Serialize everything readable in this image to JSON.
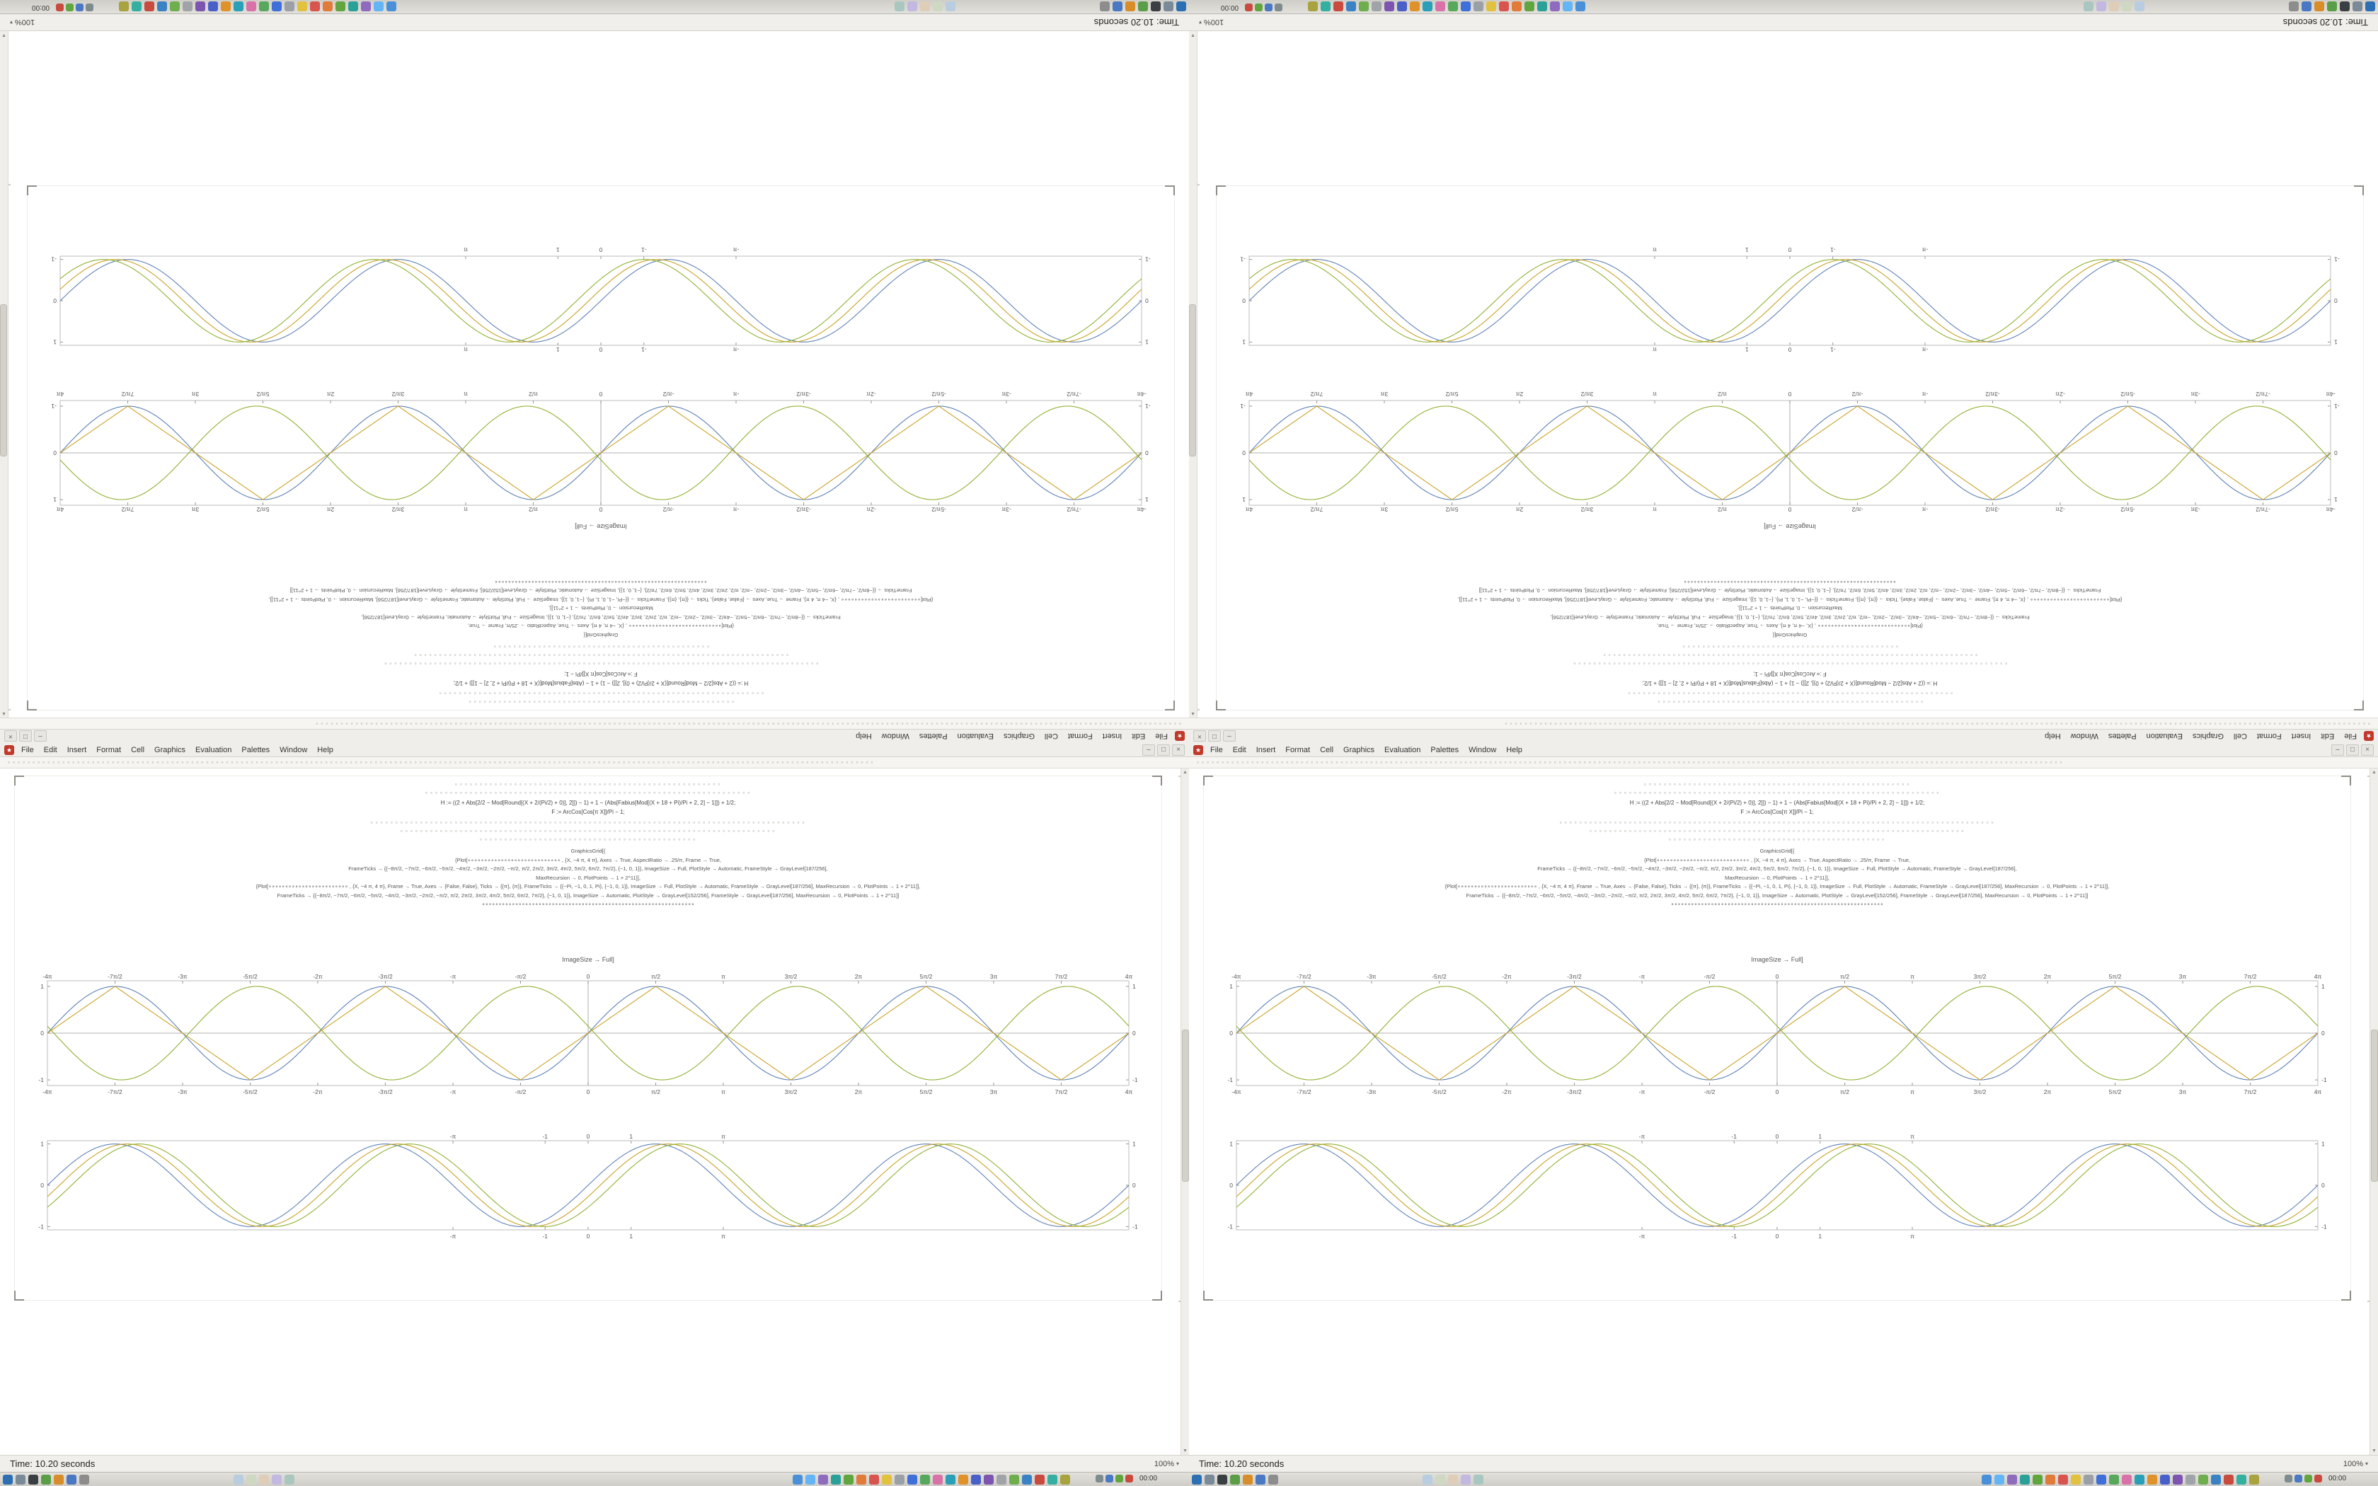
{
  "window": {
    "status_time": "Time: 10.20 seconds",
    "zoom": "100%",
    "zoom_caret": "▾",
    "clock": "00:00"
  },
  "menu": {
    "items": [
      "File",
      "Edit",
      "Insert",
      "Format",
      "Cell",
      "Graphics",
      "Evaluation",
      "Palettes",
      "Window",
      "Help"
    ],
    "window_buttons": [
      {
        "name": "window-minimize-button",
        "glyph": "–"
      },
      {
        "name": "window-maximize-button",
        "glyph": "□"
      },
      {
        "name": "window-close-button",
        "glyph": "×"
      }
    ]
  },
  "toolbar": {
    "rows": [
      {
        "count": 175
      }
    ]
  },
  "scrollbar": {
    "up_glyph": "▲",
    "down_glyph": "▼"
  },
  "spikey_glyph": "★",
  "notebook": {
    "glyph_char": "∘",
    "pre_rows": [
      {
        "count": 54
      },
      {
        "count": 66
      }
    ],
    "mid_rows": [
      {
        "count": 88
      },
      {
        "count": 76
      },
      {
        "count": 44
      }
    ],
    "code_intro": [
      "H := ((2 + Abs[2/2 − Mod[Round[(X + 2/(Pi/2) + 0)], 2]]) − 1) + 1 − (Abs[Fabius[Mod[(X + 18 + Pi)/Pi + 2, 2] − 1]]) + 1/2;",
      "F := ArcCos[Cos[π X]]/Pi − 1;"
    ],
    "code_main": [
      "GraphicsGrid[{",
      "{Plot[∘∘∘∘∘∘∘∘∘∘∘∘∘∘∘∘∘∘∘∘∘∘∘∘∘∘∘∘ , {X, −4 π, 4 π}, Axes → True, AspectRatio → .25/π, Frame → True,",
      "FrameTicks → {{−8π/2, −7π/2, −6π/2, −5π/2, −4π/2, −3π/2, −2π/2, −π/2, π/2, 2π/2, 3π/2, 4π/2, 5π/2, 6π/2, 7π/2}, {−1, 0, 1}}, ImageSize → Full, PlotStyle → Automatic, FrameStyle → GrayLevel[187/256],",
      "MaxRecursion → 0, PlotPoints → 1 + 2^11]],",
      "{Plot[∘∘∘∘∘∘∘∘∘∘∘∘∘∘∘∘∘∘∘∘∘∘∘∘ , {X, −4 π, 4 π}, Frame → True, Axes → {False, False}, Ticks → {{π}, {π}}, FrameTicks → {{−Pi, −1, 0, 1, Pi}, {−1, 0, 1}}, ImageSize → Full, PlotStyle → Automatic, FrameStyle → GrayLevel[187/256], MaxRecursion → 0, PlotPoints → 1 + 2^11]],",
      "FrameTicks → {{−8π/2, −7π/2, −6π/2, −5π/2, −4π/2, −3π/2, −2π/2, −π/2, π/2, 2π/2, 3π/2, 4π/2, 5π/2, 6π/2, 7π/2}, {−1, 0, 1}}, ImageSize → Automatic, PlotStyle → GrayLevel[152/256], FrameStyle → GrayLevel[187/256], MaxRecursion → 0, PlotPoints → 1 + 2^11]]",
      "∘∘∘∘∘∘∘∘∘∘∘∘∘∘∘∘∘∘∘∘∘∘∘∘∘∘∘∘∘∘∘∘∘∘∘∘∘∘∘∘∘∘∘∘∘∘∘∘∘∘∘∘∘∘∘∘∘∘∘∘∘∘∘∘"
    ],
    "caption_imagesize": "ImageSize → Full]"
  },
  "taskbar": {
    "left_icons": [
      {
        "name": "start-button",
        "color": "#2d6fb3"
      },
      {
        "name": "taskbar-icon-files",
        "color": "#7a8a99"
      },
      {
        "name": "taskbar-icon-terminal",
        "color": "#3a3f44"
      },
      {
        "name": "taskbar-icon-editor",
        "color": "#5b9e48"
      },
      {
        "name": "taskbar-icon-browser",
        "color": "#d88c2a"
      },
      {
        "name": "taskbar-icon-mail",
        "color": "#4a78c2"
      },
      {
        "name": "taskbar-icon-settings",
        "color": "#8d8d8d"
      }
    ],
    "mid_icons": [
      {
        "name": "taskbar-window-1",
        "color": "#b8cde0"
      },
      {
        "name": "taskbar-window-2",
        "color": "#cfd8c2"
      },
      {
        "name": "taskbar-window-3",
        "color": "#e0cdb8"
      },
      {
        "name": "taskbar-window-4",
        "color": "#c2b8e0"
      },
      {
        "name": "taskbar-window-5",
        "color": "#a9c7c0"
      }
    ],
    "right_icons": [
      {
        "name": "taskbar-app-1",
        "color": "#4a90d9"
      },
      {
        "name": "taskbar-app-2",
        "color": "#64b5f6"
      },
      {
        "name": "taskbar-app-3",
        "color": "#8e6bbf"
      },
      {
        "name": "taskbar-app-4",
        "color": "#2aa198"
      },
      {
        "name": "taskbar-app-5",
        "color": "#61a53f"
      },
      {
        "name": "taskbar-app-6",
        "color": "#e07b39"
      },
      {
        "name": "taskbar-app-7",
        "color": "#d9534f"
      },
      {
        "name": "taskbar-app-8",
        "color": "#e2c13f"
      },
      {
        "name": "taskbar-app-9",
        "color": "#9aa0a6"
      },
      {
        "name": "taskbar-app-10",
        "color": "#3f6fd9"
      },
      {
        "name": "taskbar-app-11",
        "color": "#57a85c"
      },
      {
        "name": "taskbar-app-12",
        "color": "#d972a8"
      },
      {
        "name": "taskbar-app-13",
        "color": "#2a9fb8"
      },
      {
        "name": "taskbar-app-14",
        "color": "#e0922a"
      },
      {
        "name": "taskbar-app-15",
        "color": "#4a60c9"
      },
      {
        "name": "taskbar-app-16",
        "color": "#7d55b0"
      },
      {
        "name": "taskbar-app-17",
        "color": "#a0a4a8"
      },
      {
        "name": "taskbar-app-18",
        "color": "#6fae4e"
      },
      {
        "name": "taskbar-app-19",
        "color": "#3b82c4"
      },
      {
        "name": "taskbar-app-20",
        "color": "#c94a3f"
      },
      {
        "name": "taskbar-app-21",
        "color": "#35b0a0"
      },
      {
        "name": "taskbar-app-22",
        "color": "#a8a23f"
      }
    ],
    "tray_icons": [
      {
        "name": "tray-icon-network",
        "color": "#7f8c8d"
      },
      {
        "name": "tray-icon-volume",
        "color": "#4a78c2"
      },
      {
        "name": "tray-icon-update",
        "color": "#61a53f"
      },
      {
        "name": "tray-icon-alert",
        "color": "#c94a3f"
      }
    ]
  },
  "chart_data": [
    {
      "id": "braided-waves",
      "type": "line",
      "title": "",
      "xlabel": "",
      "ylabel": "",
      "x_min": -12.566,
      "x_max": 12.566,
      "y_min": -1.12,
      "y_max": 1.12,
      "frame": true,
      "center_axes": true,
      "grid": false,
      "legend": "none",
      "x_ticks": [
        {
          "k": -8,
          "label": "-4π"
        },
        {
          "k": -7,
          "label": "-7π/2"
        },
        {
          "k": -6,
          "label": "-3π"
        },
        {
          "k": -5,
          "label": "-5π/2"
        },
        {
          "k": -4,
          "label": "-2π"
        },
        {
          "k": -3,
          "label": "-3π/2"
        },
        {
          "k": -2,
          "label": "-π"
        },
        {
          "k": -1,
          "label": "-π/2"
        },
        {
          "k": 0,
          "label": "0"
        },
        {
          "k": 1,
          "label": "π/2"
        },
        {
          "k": 2,
          "label": "π"
        },
        {
          "k": 3,
          "label": "3π/2"
        },
        {
          "k": 4,
          "label": "2π"
        },
        {
          "k": 5,
          "label": "5π/2"
        },
        {
          "k": 6,
          "label": "3π"
        },
        {
          "k": 7,
          "label": "7π/2"
        },
        {
          "k": 8,
          "label": "4π"
        }
      ],
      "y_ticks": [
        {
          "v": -1,
          "label": "-1"
        },
        {
          "v": 0,
          "label": "0"
        },
        {
          "v": 1,
          "label": "1"
        }
      ],
      "series": [
        {
          "name": "sin(x)",
          "fn": "sin",
          "phase": 0,
          "sign": 1,
          "amp": 1,
          "color": "#5e81b5"
        },
        {
          "name": "triangle(x)",
          "fn": "tri",
          "phase": 0,
          "sign": 1,
          "amp": 1,
          "color": "#c9a227"
        },
        {
          "name": "-sin(x-0.15)",
          "fn": "sin",
          "phase": -0.15,
          "sign": -1,
          "amp": 1,
          "color": "#8fb032"
        }
      ]
    },
    {
      "id": "framed-sine-trio",
      "type": "line",
      "title": "",
      "xlabel": "",
      "ylabel": "",
      "x_min": -12.566,
      "x_max": 12.566,
      "y_min": -1.08,
      "y_max": 1.08,
      "frame": true,
      "center_axes": false,
      "grid": false,
      "legend": "none",
      "x_ticks": [
        {
          "v": -3.14159,
          "label": "-π"
        },
        {
          "v": -1,
          "label": "-1"
        },
        {
          "v": 0,
          "label": "0"
        },
        {
          "v": 1,
          "label": "1"
        },
        {
          "v": 3.14159,
          "label": "π"
        }
      ],
      "y_ticks": [
        {
          "v": -1,
          "label": "-1"
        },
        {
          "v": 0,
          "label": "0"
        },
        {
          "v": 1,
          "label": "1"
        }
      ],
      "series": [
        {
          "name": "sin(x)",
          "fn": "sin",
          "phase": 0,
          "sign": 1,
          "amp": 1,
          "color": "#5e81b5"
        },
        {
          "name": "sin(x-0.28)",
          "fn": "sin",
          "phase": -0.28,
          "sign": 1,
          "amp": 1,
          "color": "#c9a227"
        },
        {
          "name": "sin(x-0.56)",
          "fn": "sin",
          "phase": -0.56,
          "sign": 1,
          "amp": 1,
          "color": "#8fb032"
        }
      ]
    }
  ]
}
